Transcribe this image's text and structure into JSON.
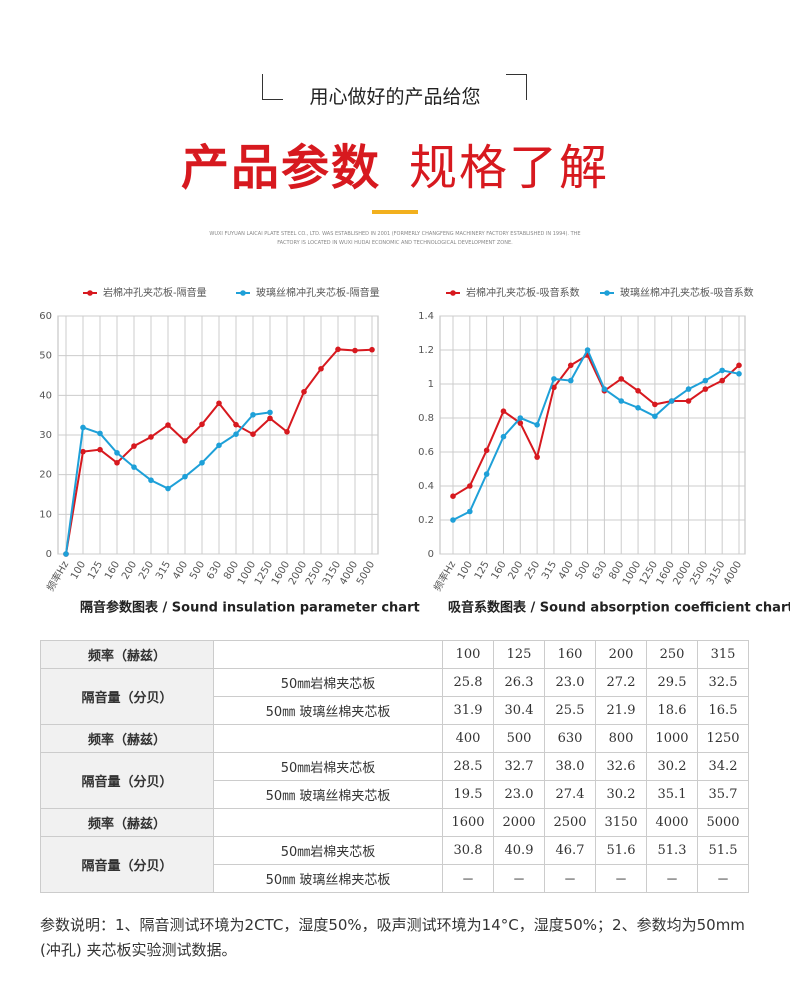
{
  "header": {
    "tagline": "用心做好的产品给您",
    "title_main": "产品参数",
    "title_sub": "规格了解",
    "intro": "WUXI FUYUAN LAICAI PLATE STEEL CO., LTD. WAS ESTABLISHED IN 2001 (FORMERLY CHANGFENG MACHINERY FACTORY ESTABLISHED IN 1994). THE FACTORY IS LOCATED IN WUXI HUDAI ECONOMIC AND TECHNOLOGICAL DEVELOPMENT ZONE."
  },
  "chart_data": [
    {
      "type": "line",
      "title": "隔音参数图表 / Sound insulation parameter chart",
      "categories": [
        "频率Hz",
        "100",
        "125",
        "160",
        "200",
        "250",
        "315",
        "400",
        "500",
        "630",
        "800",
        "1000",
        "1250",
        "1600",
        "2000",
        "2500",
        "3150",
        "4000",
        "5000"
      ],
      "series": [
        {
          "name": "岩棉冲孔夹芯板-隔音量",
          "color": "#d7191f",
          "values": [
            0,
            25.8,
            26.3,
            23.0,
            27.2,
            29.5,
            32.5,
            28.5,
            32.7,
            38.0,
            32.6,
            30.2,
            34.2,
            30.8,
            40.9,
            46.7,
            51.6,
            51.3,
            51.5
          ]
        },
        {
          "name": "玻璃丝棉冲孔夹芯板-隔音量",
          "color": "#1ea0d8",
          "values": [
            0,
            31.9,
            30.4,
            25.5,
            21.9,
            18.6,
            16.5,
            19.5,
            23.0,
            27.4,
            30.2,
            35.1,
            35.7,
            null,
            null,
            null,
            null,
            null,
            null
          ]
        }
      ],
      "ylim": [
        0,
        60
      ],
      "yticks": [
        0,
        10,
        20,
        30,
        40,
        50,
        60
      ],
      "grid": true
    },
    {
      "type": "line",
      "title": "吸音系数图表 / Sound absorption coefficient chart",
      "categories": [
        "频率Hz",
        "100",
        "125",
        "160",
        "200",
        "250",
        "315",
        "400",
        "500",
        "630",
        "800",
        "1000",
        "1250",
        "1600",
        "2000",
        "2500",
        "3150",
        "4000"
      ],
      "series": [
        {
          "name": "岩棉冲孔夹芯板-吸音系数",
          "color": "#d7191f",
          "values": [
            0.34,
            0.4,
            0.61,
            0.84,
            0.77,
            0.57,
            0.98,
            1.11,
            1.17,
            0.96,
            1.03,
            0.96,
            0.88,
            0.9,
            0.9,
            0.97,
            1.02,
            1.11
          ]
        },
        {
          "name": "玻璃丝棉冲孔夹芯板-吸音系数",
          "color": "#1ea0d8",
          "values": [
            0.2,
            0.25,
            0.47,
            0.69,
            0.8,
            0.76,
            1.03,
            1.02,
            1.2,
            0.97,
            0.9,
            0.86,
            0.81,
            0.9,
            0.97,
            1.02,
            1.08,
            1.06
          ]
        }
      ],
      "ylim": [
        0,
        1.4
      ],
      "yticks": [
        0,
        0.2,
        0.4,
        0.6,
        0.8,
        1,
        1.2,
        1.4
      ],
      "grid": true
    }
  ],
  "table": {
    "groups": [
      {
        "freq_label": "频率（赫兹）",
        "freqs": [
          "100",
          "125",
          "160",
          "200",
          "250",
          "315"
        ],
        "row_label": "隔音量（分贝）",
        "rows": [
          {
            "name": "50㎜岩棉夹芯板",
            "values": [
              "25.8",
              "26.3",
              "23.0",
              "27.2",
              "29.5",
              "32.5"
            ]
          },
          {
            "name": "50㎜ 玻璃丝棉夹芯板",
            "values": [
              "31.9",
              "30.4",
              "25.5",
              "21.9",
              "18.6",
              "16.5"
            ]
          }
        ]
      },
      {
        "freq_label": "频率（赫兹）",
        "freqs": [
          "400",
          "500",
          "630",
          "800",
          "1000",
          "1250"
        ],
        "row_label": "隔音量（分贝）",
        "rows": [
          {
            "name": "50㎜岩棉夹芯板",
            "values": [
              "28.5",
              "32.7",
              "38.0",
              "32.6",
              "30.2",
              "34.2"
            ]
          },
          {
            "name": "50㎜ 玻璃丝棉夹芯板",
            "values": [
              "19.5",
              "23.0",
              "27.4",
              "30.2",
              "35.1",
              "35.7"
            ]
          }
        ]
      },
      {
        "freq_label": "频率（赫兹）",
        "freqs": [
          "1600",
          "2000",
          "2500",
          "3150",
          "4000",
          "5000"
        ],
        "row_label": "隔音量（分贝）",
        "rows": [
          {
            "name": "50㎜岩棉夹芯板",
            "values": [
              "30.8",
              "40.9",
              "46.7",
              "51.6",
              "51.3",
              "51.5"
            ]
          },
          {
            "name": "50㎜ 玻璃丝棉夹芯板",
            "values": [
              "－",
              "－",
              "－",
              "－",
              "－",
              "－"
            ]
          }
        ]
      }
    ]
  },
  "note": "参数说明：1、隔音测试环境为2CTC，湿度50%，吸声测试环境为14°C，湿度50%；2、参数均为50mm (冲孔) 夹芯板实验测试数据。"
}
